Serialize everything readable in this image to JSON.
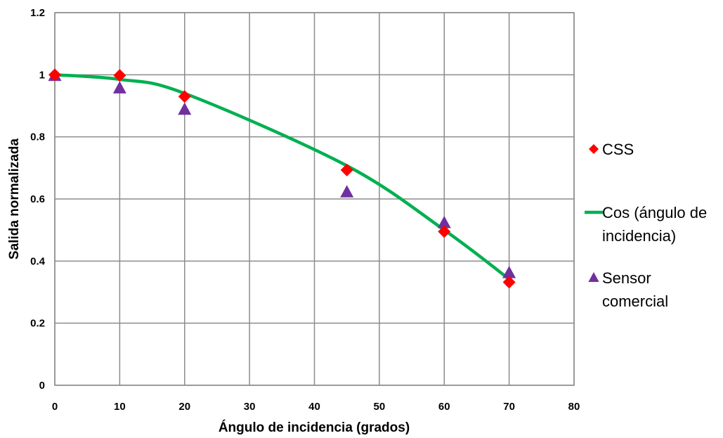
{
  "chart_data": {
    "type": "scatter",
    "xlabel": "Ángulo de incidencia (grados)",
    "ylabel": "Salida normalizada",
    "xlim": [
      0,
      80
    ],
    "ylim": [
      0,
      1.2
    ],
    "x_ticks": [
      "0",
      "10",
      "20",
      "30",
      "40",
      "50",
      "60",
      "70",
      "80"
    ],
    "y_ticks": [
      "0",
      "0.2",
      "0.4",
      "0.6",
      "0.8",
      "1",
      "1.2"
    ],
    "grid": true,
    "legend_position": "right",
    "series": [
      {
        "name": "CSS",
        "type": "scatter",
        "marker": "diamond",
        "color": "#ff0000",
        "x": [
          0,
          10,
          20,
          45,
          60,
          70
        ],
        "y": [
          1.0,
          0.998,
          0.93,
          0.693,
          0.495,
          0.332
        ]
      },
      {
        "name": "Cos (ángulo de incidencia)",
        "legend_lines": [
          "Cos (ángulo de",
          "incidencia)"
        ],
        "type": "line",
        "color": "#00b050",
        "x": [
          0,
          10,
          20,
          45,
          60,
          70
        ],
        "y": [
          1.0,
          0.985,
          0.94,
          0.707,
          0.5,
          0.342
        ]
      },
      {
        "name": "Sensor comercial",
        "legend_lines": [
          "Sensor",
          "comercial"
        ],
        "type": "scatter",
        "marker": "triangle",
        "color": "#7030a0",
        "x": [
          0,
          10,
          20,
          45,
          60,
          70
        ],
        "y": [
          0.997,
          0.957,
          0.888,
          0.622,
          0.523,
          0.362
        ]
      }
    ]
  }
}
